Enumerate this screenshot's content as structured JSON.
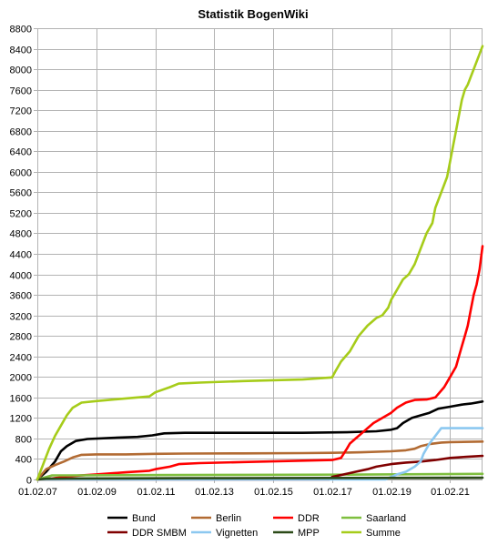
{
  "chart_data": {
    "type": "line",
    "title": "Statistik BogenWiki",
    "xlabel": "",
    "ylabel": "",
    "ylim": [
      0,
      8800
    ],
    "yticks": [
      0,
      400,
      800,
      1200,
      1600,
      2000,
      2400,
      2800,
      3200,
      3600,
      4000,
      4400,
      4800,
      5200,
      5600,
      6000,
      6400,
      6800,
      7200,
      7600,
      8000,
      8400,
      8800
    ],
    "xlim": [
      2007.0,
      2022.1
    ],
    "xticks": [
      {
        "x": 2007.0,
        "label": "01.02.07"
      },
      {
        "x": 2009.0,
        "label": "01.02.09"
      },
      {
        "x": 2011.0,
        "label": "01.02.11"
      },
      {
        "x": 2013.0,
        "label": "01.02.13"
      },
      {
        "x": 2015.0,
        "label": "01.02.15"
      },
      {
        "x": 2017.0,
        "label": "01.02.17"
      },
      {
        "x": 2019.0,
        "label": "01.02.19"
      },
      {
        "x": 2021.0,
        "label": "01.02.21"
      }
    ],
    "grid": true,
    "legend_position": "bottom",
    "series": [
      {
        "name": "Bund",
        "color": "#000000",
        "points": [
          [
            2007.0,
            0
          ],
          [
            2007.3,
            150
          ],
          [
            2007.6,
            350
          ],
          [
            2007.8,
            550
          ],
          [
            2008.0,
            650
          ],
          [
            2008.3,
            750
          ],
          [
            2008.7,
            790
          ],
          [
            2009.5,
            810
          ],
          [
            2010.4,
            830
          ],
          [
            2010.9,
            860
          ],
          [
            2011.3,
            900
          ],
          [
            2012.0,
            910
          ],
          [
            2014.0,
            910
          ],
          [
            2016.0,
            910
          ],
          [
            2017.5,
            920
          ],
          [
            2018.5,
            940
          ],
          [
            2019.0,
            970
          ],
          [
            2019.2,
            1000
          ],
          [
            2019.4,
            1100
          ],
          [
            2019.7,
            1200
          ],
          [
            2020.0,
            1250
          ],
          [
            2020.3,
            1300
          ],
          [
            2020.6,
            1380
          ],
          [
            2021.0,
            1420
          ],
          [
            2021.4,
            1460
          ],
          [
            2021.7,
            1480
          ],
          [
            2022.1,
            1520
          ]
        ]
      },
      {
        "name": "Berlin",
        "color": "#b26b33",
        "points": [
          [
            2007.0,
            0
          ],
          [
            2007.3,
            200
          ],
          [
            2007.6,
            280
          ],
          [
            2007.9,
            350
          ],
          [
            2008.2,
            430
          ],
          [
            2008.5,
            480
          ],
          [
            2009.0,
            490
          ],
          [
            2010.0,
            490
          ],
          [
            2011.0,
            500
          ],
          [
            2012.0,
            505
          ],
          [
            2014.0,
            510
          ],
          [
            2016.0,
            515
          ],
          [
            2017.0,
            520
          ],
          [
            2018.0,
            530
          ],
          [
            2019.0,
            550
          ],
          [
            2019.5,
            570
          ],
          [
            2019.8,
            600
          ],
          [
            2020.0,
            650
          ],
          [
            2020.3,
            690
          ],
          [
            2020.7,
            720
          ],
          [
            2021.0,
            730
          ],
          [
            2022.1,
            740
          ]
        ]
      },
      {
        "name": "DDR",
        "color": "#ff0000",
        "points": [
          [
            2007.0,
            0
          ],
          [
            2007.5,
            20
          ],
          [
            2008.0,
            60
          ],
          [
            2009.0,
            100
          ],
          [
            2010.0,
            140
          ],
          [
            2010.8,
            170
          ],
          [
            2011.0,
            200
          ],
          [
            2011.5,
            250
          ],
          [
            2011.8,
            300
          ],
          [
            2012.5,
            320
          ],
          [
            2014.0,
            340
          ],
          [
            2015.5,
            360
          ],
          [
            2017.0,
            380
          ],
          [
            2017.3,
            420
          ],
          [
            2017.5,
            600
          ],
          [
            2017.6,
            700
          ],
          [
            2017.8,
            800
          ],
          [
            2018.0,
            900
          ],
          [
            2018.2,
            1000
          ],
          [
            2018.4,
            1100
          ],
          [
            2018.7,
            1200
          ],
          [
            2019.0,
            1300
          ],
          [
            2019.2,
            1400
          ],
          [
            2019.5,
            1500
          ],
          [
            2019.8,
            1550
          ],
          [
            2020.2,
            1560
          ],
          [
            2020.5,
            1600
          ],
          [
            2020.8,
            1800
          ],
          [
            2021.0,
            2000
          ],
          [
            2021.2,
            2200
          ],
          [
            2021.3,
            2400
          ],
          [
            2021.4,
            2600
          ],
          [
            2021.5,
            2800
          ],
          [
            2021.6,
            3000
          ],
          [
            2021.7,
            3300
          ],
          [
            2021.8,
            3600
          ],
          [
            2021.9,
            3800
          ],
          [
            2022.0,
            4100
          ],
          [
            2022.1,
            4550
          ]
        ]
      },
      {
        "name": "Saarland",
        "color": "#7fbf3f",
        "points": [
          [
            2007.0,
            0
          ],
          [
            2007.5,
            80
          ],
          [
            2008.0,
            80
          ],
          [
            2010.0,
            85
          ],
          [
            2014.0,
            90
          ],
          [
            2018.0,
            95
          ],
          [
            2022.1,
            110
          ]
        ]
      },
      {
        "name": "DDR SMBM",
        "color": "#800000",
        "points": [
          [
            2007.0,
            0
          ],
          [
            2016.9,
            0
          ],
          [
            2017.0,
            50
          ],
          [
            2017.4,
            100
          ],
          [
            2017.8,
            150
          ],
          [
            2018.2,
            200
          ],
          [
            2018.5,
            250
          ],
          [
            2019.0,
            300
          ],
          [
            2019.5,
            330
          ],
          [
            2020.0,
            350
          ],
          [
            2020.5,
            380
          ],
          [
            2021.0,
            420
          ],
          [
            2021.5,
            440
          ],
          [
            2022.1,
            460
          ]
        ]
      },
      {
        "name": "Vignetten",
        "color": "#8cc8f0",
        "points": [
          [
            2007.0,
            0
          ],
          [
            2018.8,
            0
          ],
          [
            2019.0,
            50
          ],
          [
            2019.2,
            100
          ],
          [
            2019.5,
            150
          ],
          [
            2019.8,
            250
          ],
          [
            2020.0,
            350
          ],
          [
            2020.1,
            500
          ],
          [
            2020.3,
            700
          ],
          [
            2020.5,
            850
          ],
          [
            2020.7,
            1000
          ],
          [
            2022.1,
            1000
          ]
        ]
      },
      {
        "name": "MPP",
        "color": "#2b4a18",
        "points": [
          [
            2007.0,
            0
          ],
          [
            2007.3,
            15
          ],
          [
            2008.0,
            20
          ],
          [
            2012.0,
            25
          ],
          [
            2018.0,
            30
          ],
          [
            2022.1,
            35
          ]
        ]
      },
      {
        "name": "Summe",
        "color": "#a6cc1a",
        "points": [
          [
            2007.0,
            0
          ],
          [
            2007.2,
            300
          ],
          [
            2007.4,
            600
          ],
          [
            2007.6,
            850
          ],
          [
            2007.8,
            1050
          ],
          [
            2008.0,
            1250
          ],
          [
            2008.2,
            1400
          ],
          [
            2008.5,
            1500
          ],
          [
            2009.0,
            1530
          ],
          [
            2010.0,
            1580
          ],
          [
            2010.8,
            1620
          ],
          [
            2011.0,
            1700
          ],
          [
            2011.5,
            1800
          ],
          [
            2011.8,
            1870
          ],
          [
            2012.5,
            1890
          ],
          [
            2014.0,
            1920
          ],
          [
            2016.0,
            1950
          ],
          [
            2017.0,
            1990
          ],
          [
            2017.1,
            2100
          ],
          [
            2017.3,
            2300
          ],
          [
            2017.6,
            2500
          ],
          [
            2017.9,
            2800
          ],
          [
            2018.2,
            3000
          ],
          [
            2018.5,
            3150
          ],
          [
            2018.7,
            3200
          ],
          [
            2018.9,
            3350
          ],
          [
            2019.0,
            3500
          ],
          [
            2019.2,
            3700
          ],
          [
            2019.4,
            3900
          ],
          [
            2019.6,
            4000
          ],
          [
            2019.8,
            4200
          ],
          [
            2020.0,
            4500
          ],
          [
            2020.2,
            4800
          ],
          [
            2020.4,
            5000
          ],
          [
            2020.5,
            5300
          ],
          [
            2020.7,
            5600
          ],
          [
            2020.9,
            5900
          ],
          [
            2021.0,
            6200
          ],
          [
            2021.1,
            6500
          ],
          [
            2021.2,
            6800
          ],
          [
            2021.3,
            7100
          ],
          [
            2021.4,
            7400
          ],
          [
            2021.5,
            7600
          ],
          [
            2021.6,
            7700
          ],
          [
            2021.8,
            8000
          ],
          [
            2022.0,
            8300
          ],
          [
            2022.1,
            8450
          ]
        ]
      }
    ]
  }
}
